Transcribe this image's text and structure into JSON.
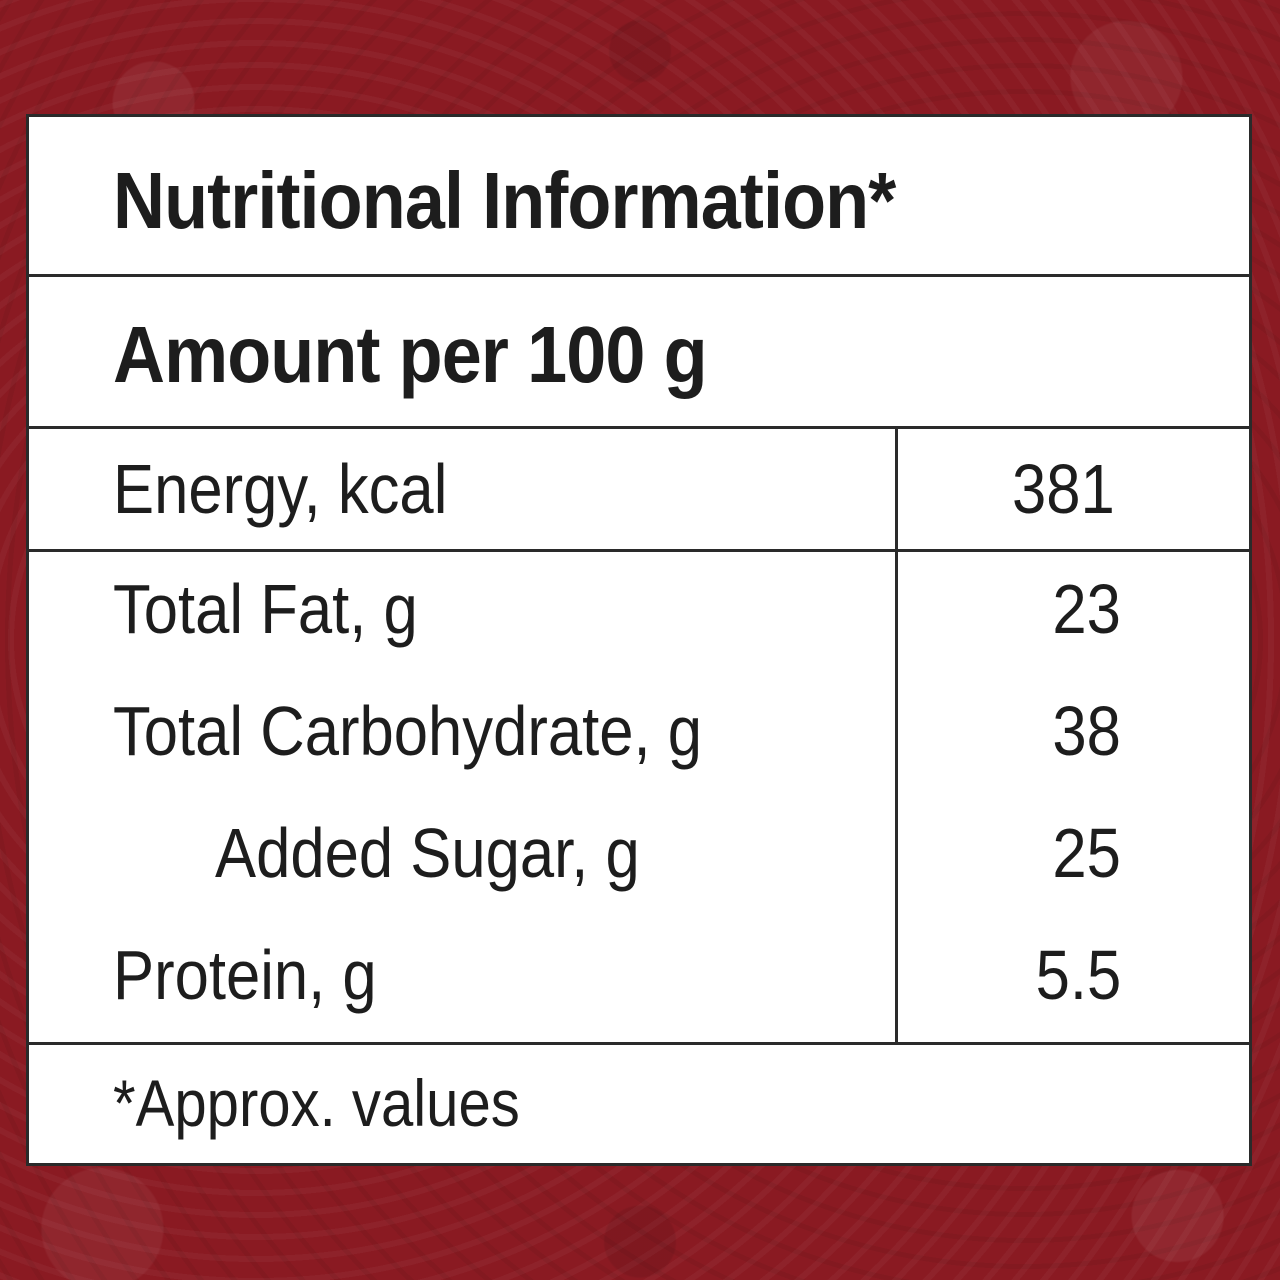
{
  "label": {
    "title": "Nutritional Information*",
    "serving_basis": "Amount per 100 g",
    "nutrients": [
      {
        "name": "Energy, kcal",
        "value": "381"
      },
      {
        "name": "Total Fat, g",
        "value": "23"
      },
      {
        "name": "Total Carbohydrate, g",
        "value": "38"
      },
      {
        "name": "Added Sugar, g",
        "value": "25",
        "indented": true
      },
      {
        "name": "Protein, g",
        "value": "5.5"
      }
    ],
    "footnote": "*Approx. values"
  },
  "colors": {
    "background": "#8a1a22",
    "panel": "#ffffff",
    "text": "#1d1d1d",
    "rule": "#2a2a2a"
  }
}
